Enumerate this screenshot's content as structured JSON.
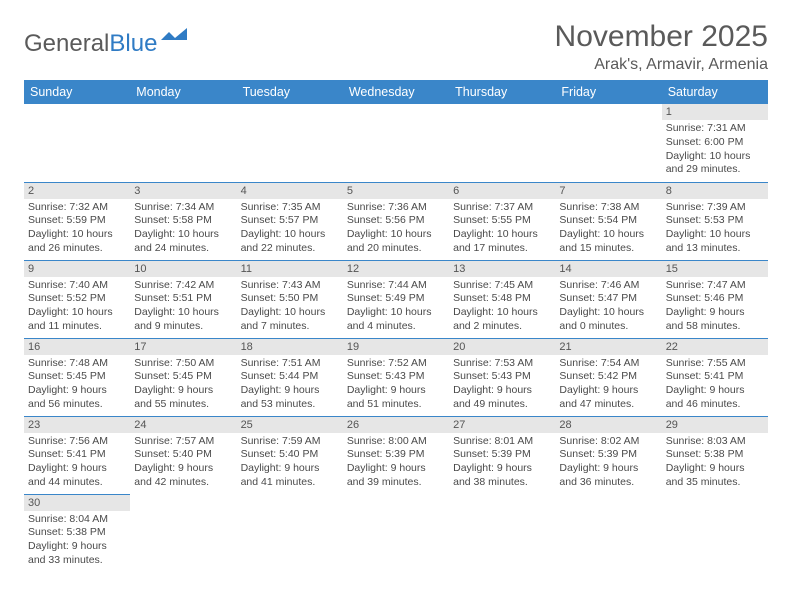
{
  "logo": {
    "text1": "General",
    "text2": "Blue"
  },
  "title": "November 2025",
  "location": "Arak's, Armavir, Armenia",
  "header_color": "#3a86c9",
  "day_bg": "#e6e6e6",
  "text_color": "#4a4a4a",
  "daynames": [
    "Sunday",
    "Monday",
    "Tuesday",
    "Wednesday",
    "Thursday",
    "Friday",
    "Saturday"
  ],
  "weeks": [
    [
      null,
      null,
      null,
      null,
      null,
      null,
      {
        "n": "1",
        "sr": "7:31 AM",
        "ss": "6:00 PM",
        "dl": "10 hours and 29 minutes."
      }
    ],
    [
      {
        "n": "2",
        "sr": "7:32 AM",
        "ss": "5:59 PM",
        "dl": "10 hours and 26 minutes."
      },
      {
        "n": "3",
        "sr": "7:34 AM",
        "ss": "5:58 PM",
        "dl": "10 hours and 24 minutes."
      },
      {
        "n": "4",
        "sr": "7:35 AM",
        "ss": "5:57 PM",
        "dl": "10 hours and 22 minutes."
      },
      {
        "n": "5",
        "sr": "7:36 AM",
        "ss": "5:56 PM",
        "dl": "10 hours and 20 minutes."
      },
      {
        "n": "6",
        "sr": "7:37 AM",
        "ss": "5:55 PM",
        "dl": "10 hours and 17 minutes."
      },
      {
        "n": "7",
        "sr": "7:38 AM",
        "ss": "5:54 PM",
        "dl": "10 hours and 15 minutes."
      },
      {
        "n": "8",
        "sr": "7:39 AM",
        "ss": "5:53 PM",
        "dl": "10 hours and 13 minutes."
      }
    ],
    [
      {
        "n": "9",
        "sr": "7:40 AM",
        "ss": "5:52 PM",
        "dl": "10 hours and 11 minutes."
      },
      {
        "n": "10",
        "sr": "7:42 AM",
        "ss": "5:51 PM",
        "dl": "10 hours and 9 minutes."
      },
      {
        "n": "11",
        "sr": "7:43 AM",
        "ss": "5:50 PM",
        "dl": "10 hours and 7 minutes."
      },
      {
        "n": "12",
        "sr": "7:44 AM",
        "ss": "5:49 PM",
        "dl": "10 hours and 4 minutes."
      },
      {
        "n": "13",
        "sr": "7:45 AM",
        "ss": "5:48 PM",
        "dl": "10 hours and 2 minutes."
      },
      {
        "n": "14",
        "sr": "7:46 AM",
        "ss": "5:47 PM",
        "dl": "10 hours and 0 minutes."
      },
      {
        "n": "15",
        "sr": "7:47 AM",
        "ss": "5:46 PM",
        "dl": "9 hours and 58 minutes."
      }
    ],
    [
      {
        "n": "16",
        "sr": "7:48 AM",
        "ss": "5:45 PM",
        "dl": "9 hours and 56 minutes."
      },
      {
        "n": "17",
        "sr": "7:50 AM",
        "ss": "5:45 PM",
        "dl": "9 hours and 55 minutes."
      },
      {
        "n": "18",
        "sr": "7:51 AM",
        "ss": "5:44 PM",
        "dl": "9 hours and 53 minutes."
      },
      {
        "n": "19",
        "sr": "7:52 AM",
        "ss": "5:43 PM",
        "dl": "9 hours and 51 minutes."
      },
      {
        "n": "20",
        "sr": "7:53 AM",
        "ss": "5:43 PM",
        "dl": "9 hours and 49 minutes."
      },
      {
        "n": "21",
        "sr": "7:54 AM",
        "ss": "5:42 PM",
        "dl": "9 hours and 47 minutes."
      },
      {
        "n": "22",
        "sr": "7:55 AM",
        "ss": "5:41 PM",
        "dl": "9 hours and 46 minutes."
      }
    ],
    [
      {
        "n": "23",
        "sr": "7:56 AM",
        "ss": "5:41 PM",
        "dl": "9 hours and 44 minutes."
      },
      {
        "n": "24",
        "sr": "7:57 AM",
        "ss": "5:40 PM",
        "dl": "9 hours and 42 minutes."
      },
      {
        "n": "25",
        "sr": "7:59 AM",
        "ss": "5:40 PM",
        "dl": "9 hours and 41 minutes."
      },
      {
        "n": "26",
        "sr": "8:00 AM",
        "ss": "5:39 PM",
        "dl": "9 hours and 39 minutes."
      },
      {
        "n": "27",
        "sr": "8:01 AM",
        "ss": "5:39 PM",
        "dl": "9 hours and 38 minutes."
      },
      {
        "n": "28",
        "sr": "8:02 AM",
        "ss": "5:39 PM",
        "dl": "9 hours and 36 minutes."
      },
      {
        "n": "29",
        "sr": "8:03 AM",
        "ss": "5:38 PM",
        "dl": "9 hours and 35 minutes."
      }
    ],
    [
      {
        "n": "30",
        "sr": "8:04 AM",
        "ss": "5:38 PM",
        "dl": "9 hours and 33 minutes."
      },
      null,
      null,
      null,
      null,
      null,
      null
    ]
  ],
  "labels": {
    "sunrise": "Sunrise:",
    "sunset": "Sunset:",
    "daylight": "Daylight:"
  }
}
